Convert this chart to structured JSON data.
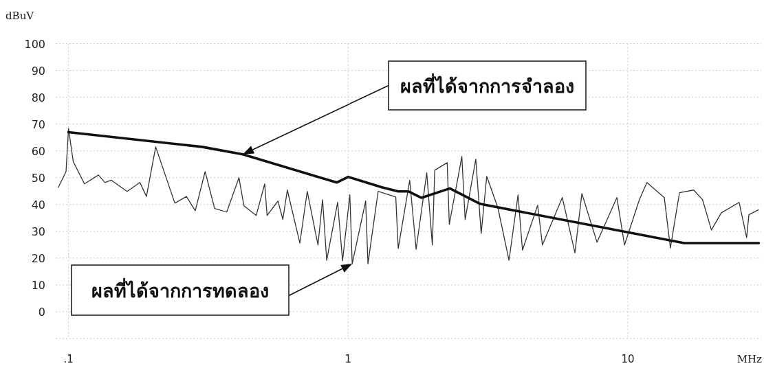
{
  "chart_data": {
    "type": "line",
    "xlabel": "MHz",
    "ylabel": "dBuV",
    "log": "x",
    "grid": true,
    "xlim": [
      0.09,
      30
    ],
    "ylim": [
      -10,
      100
    ],
    "xticks": [
      {
        "value": 0.1,
        "label": ".1"
      },
      1,
      10
    ],
    "yticks": [
      {
        "value": -10,
        "label": null
      },
      0,
      10,
      20,
      30,
      40,
      50,
      60,
      70,
      80,
      90,
      100
    ],
    "series": [
      {
        "color": "#333333",
        "x": [
          0.092,
          0.098,
          0.1,
          0.104,
          0.114,
          0.128,
          0.135,
          0.142,
          0.162,
          0.18,
          0.19,
          0.205,
          0.24,
          0.264,
          0.284,
          0.308,
          0.333,
          0.368,
          0.407,
          0.424,
          0.469,
          0.503,
          0.513,
          0.561,
          0.584,
          0.606,
          0.672,
          0.714,
          0.78,
          0.81,
          0.838,
          0.917,
          0.955,
          1.014,
          1.034,
          1.155,
          1.177,
          1.28,
          1.48,
          1.51,
          1.66,
          1.75,
          1.91,
          2.0,
          2.04,
          2.26,
          2.3,
          2.55,
          2.62,
          2.86,
          2.99,
          3.13,
          3.43,
          3.76,
          4.05,
          4.2,
          4.76,
          4.95,
          5.83,
          6.47,
          6.85,
          7.76,
          9.14,
          9.73,
          11.0,
          11.7,
          13.5,
          14.2,
          15.3,
          17.2,
          18.5,
          19.9,
          21.6,
          25,
          26.6,
          27.1,
          29.3
        ],
        "values": [
          46.4,
          52.3,
          68.3,
          56,
          47.7,
          51,
          48.2,
          49.1,
          44.9,
          48.2,
          43,
          61.5,
          40.5,
          43,
          37.7,
          52.3,
          38.5,
          37.2,
          50,
          39.5,
          35.9,
          47.7,
          35.9,
          41.3,
          34.4,
          45.4,
          25.6,
          44.9,
          24.9,
          41.8,
          19.2,
          40.8,
          19,
          43.6,
          17.9,
          41.3,
          17.9,
          44.9,
          42.8,
          23.6,
          49,
          23.3,
          51.8,
          24.9,
          52.8,
          55.6,
          32.6,
          57.9,
          34.4,
          56.9,
          29.2,
          50.5,
          38.8,
          19.2,
          43.6,
          23,
          39.7,
          24.9,
          42.6,
          22,
          44.1,
          25.9,
          42.6,
          24.9,
          41.8,
          48.2,
          42.6,
          23.8,
          44.4,
          45.4,
          41.8,
          30.5,
          36.9,
          40.8,
          27.7,
          36.2,
          38
        ]
      },
      {
        "color": "#111111",
        "x": [
          0.1,
          0.3,
          0.42,
          0.91,
          1.0,
          1.32,
          1.51,
          1.64,
          1.83,
          2.31,
          2.97,
          15.9,
          29.4
        ],
        "values": [
          67,
          61.5,
          58.7,
          48.2,
          50.3,
          46.4,
          44.9,
          44.9,
          42.5,
          46,
          40.2,
          25.6,
          25.6
        ]
      }
    ],
    "annotations": [
      "ผลที่ได้จากการจำลอง",
      "ผลที่ได้จากการทดลอง"
    ]
  }
}
